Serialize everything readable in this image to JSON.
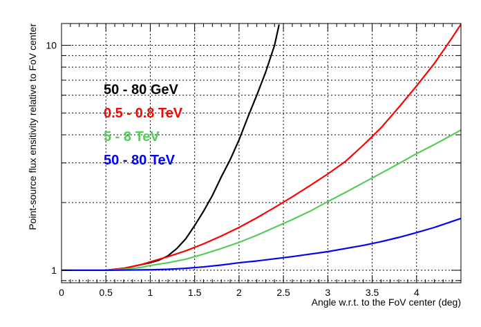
{
  "chart_data": {
    "type": "line",
    "title": "",
    "xlabel": "Angle w.r.t. to the FoV center (deg)",
    "ylabel": "Point-source flux ensitivity relative to FoV center",
    "xlim": [
      0,
      4.5
    ],
    "ylim": [
      0.88,
      12.5
    ],
    "yscale": "log",
    "grid": true,
    "legend_position": "top-left",
    "x_ticks": [
      0,
      0.5,
      1,
      1.5,
      2,
      2.5,
      3,
      3.5,
      4
    ],
    "x_tick_labels": [
      "0",
      "0.5",
      "1",
      "1.5",
      "2",
      "2.5",
      "3",
      "3.5",
      "4"
    ],
    "y_major_ticks": [
      1,
      10
    ],
    "y_major_tick_labels": [
      "1",
      "10"
    ],
    "y_minor_ticks": [
      0.9,
      2,
      3,
      4,
      5,
      6,
      7,
      8,
      9
    ],
    "series": [
      {
        "name": "50 - 80 GeV",
        "color": "#000000",
        "x": [
          0,
          0.5,
          0.6,
          0.7,
          0.8,
          0.9,
          1.0,
          1.1,
          1.2,
          1.3,
          1.4,
          1.5,
          1.6,
          1.7,
          1.8,
          1.9,
          2.0,
          2.1,
          2.2,
          2.3,
          2.4,
          2.45
        ],
        "y": [
          1.0,
          1.0,
          1.01,
          1.02,
          1.04,
          1.06,
          1.08,
          1.11,
          1.16,
          1.25,
          1.38,
          1.58,
          1.83,
          2.15,
          2.6,
          3.1,
          3.8,
          4.8,
          6.0,
          7.6,
          10.0,
          12.3
        ]
      },
      {
        "name": "0.5 - 0.8 TeV",
        "color": "#ff0000",
        "x": [
          0,
          0.5,
          0.6,
          0.7,
          0.8,
          0.9,
          1.0,
          1.2,
          1.4,
          1.6,
          1.8,
          2.0,
          2.2,
          2.4,
          2.6,
          2.8,
          3.0,
          3.2,
          3.4,
          3.6,
          3.8,
          4.0,
          4.2,
          4.4,
          4.5
        ],
        "y": [
          1.0,
          1.0,
          1.01,
          1.02,
          1.04,
          1.06,
          1.09,
          1.15,
          1.22,
          1.31,
          1.42,
          1.55,
          1.71,
          1.9,
          2.12,
          2.38,
          2.68,
          3.05,
          3.6,
          4.3,
          5.3,
          6.6,
          8.3,
          10.8,
          12.4
        ]
      },
      {
        "name": "5 - 8 TeV",
        "color": "#55cc55",
        "x": [
          0,
          0.5,
          0.7,
          0.9,
          1.0,
          1.2,
          1.4,
          1.6,
          1.8,
          2.0,
          2.2,
          2.4,
          2.6,
          2.8,
          3.0,
          3.2,
          3.4,
          3.6,
          3.8,
          4.0,
          4.2,
          4.5
        ],
        "y": [
          1.0,
          1.0,
          1.01,
          1.03,
          1.05,
          1.08,
          1.12,
          1.18,
          1.25,
          1.33,
          1.43,
          1.55,
          1.68,
          1.83,
          2.02,
          2.22,
          2.45,
          2.7,
          2.98,
          3.3,
          3.62,
          4.2
        ]
      },
      {
        "name": "50 - 80 TeV",
        "color": "#0000ff",
        "x": [
          0,
          0.5,
          1.0,
          1.2,
          1.4,
          1.6,
          1.8,
          2.0,
          2.2,
          2.4,
          2.6,
          2.8,
          3.0,
          3.2,
          3.4,
          3.6,
          3.8,
          4.0,
          4.2,
          4.5
        ],
        "y": [
          1.0,
          1.0,
          1.005,
          1.01,
          1.02,
          1.035,
          1.055,
          1.08,
          1.1,
          1.125,
          1.15,
          1.18,
          1.21,
          1.25,
          1.29,
          1.34,
          1.4,
          1.47,
          1.55,
          1.7
        ]
      }
    ]
  }
}
